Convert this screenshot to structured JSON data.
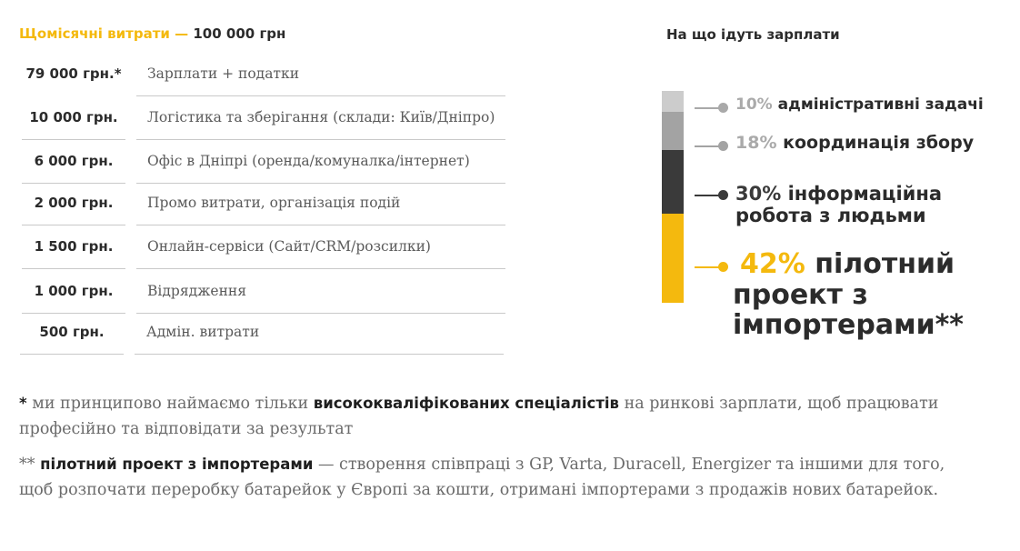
{
  "header": {
    "title_accent": "Щомісячні витрати",
    "dash": "—",
    "total": "100 000 грн"
  },
  "expenses": [
    {
      "amount": "79 000 грн.*",
      "label": "Зарплати + податки"
    },
    {
      "amount": "10 000 грн.",
      "label": "Логістика та зберігання (склади: Київ/Дніпро)"
    },
    {
      "amount": "6 000 грн.",
      "label": "Офіс в Дніпрі (оренда/комуналка/інтернет)"
    },
    {
      "amount": "2 000 грн.",
      "label": "Промо витрати, організація подій"
    },
    {
      "amount": "1 500 грн.",
      "label": "Онлайн-сервіси (Сайт/CRM/розсилки)"
    },
    {
      "amount": "1 000 грн.",
      "label": "Відрядження"
    },
    {
      "amount": "500 грн.",
      "label": "Адмін. витрати"
    }
  ],
  "chart_data": {
    "type": "bar",
    "stacked": true,
    "title": "На що ідуть зарплати",
    "unit": "%",
    "segments": [
      {
        "value": 10,
        "pct_label": "10%",
        "name": "адміністративні задачі",
        "color": "#cccccc"
      },
      {
        "value": 18,
        "pct_label": "18%",
        "name": "координація збору",
        "color": "#a3a3a3"
      },
      {
        "value": 30,
        "pct_label": "30%",
        "name": "інформаційна робота з людьми",
        "color": "#3a3a3a"
      },
      {
        "value": 42,
        "pct_label": "42%",
        "name": "пілотний проект з імпортерами**",
        "color": "#f4b90e"
      }
    ]
  },
  "notes": {
    "n1_mark": "*",
    "n1_pre": "ми принципово наймаємо тільки",
    "n1_bold": "висококваліфікованих спеціалістів",
    "n1_post": "на ринкові зарплати, щоб працювати професійно та відповідати за результат",
    "n2_mark": "**",
    "n2_bold": "пілотний проект з імпортерами",
    "n2_post": "— створення співпраці з GP, Varta, Duracell, Energizer та іншими для того, щоб розпочати переробку батарейок у Європі за кошти, отримані імпортерами з продажів нових батарейок."
  }
}
